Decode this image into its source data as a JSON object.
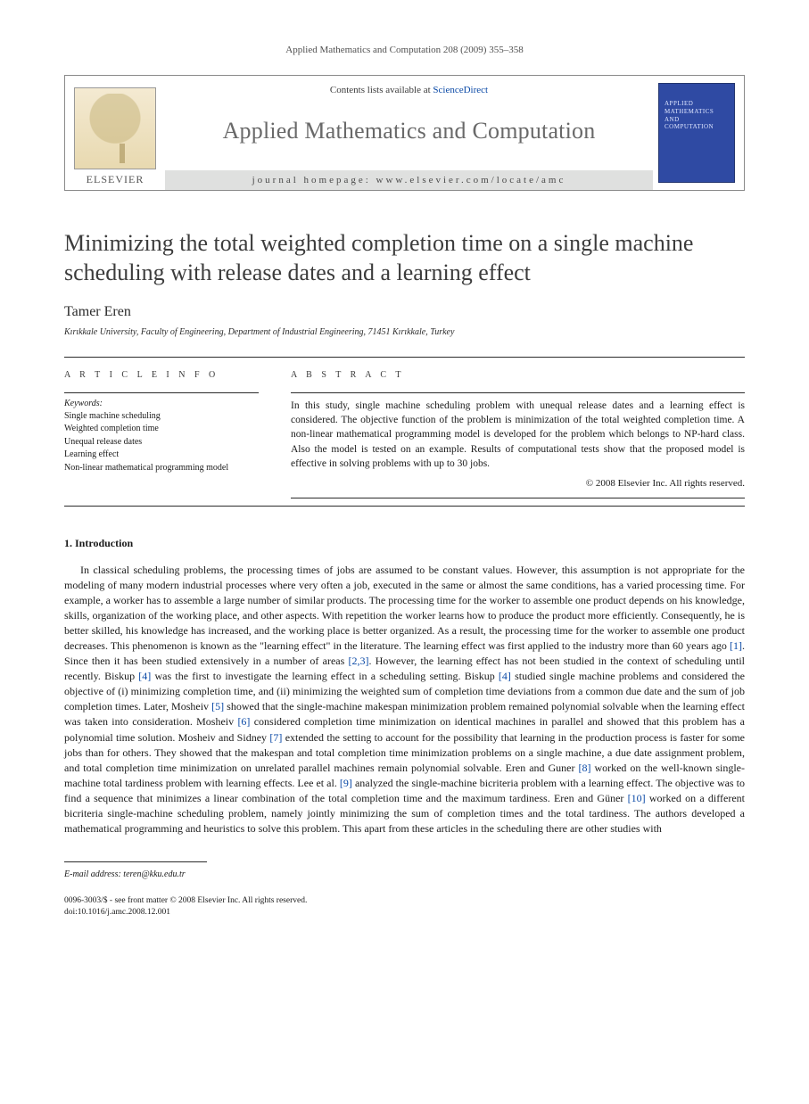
{
  "running_head": "Applied Mathematics and Computation 208 (2009) 355–358",
  "masthead": {
    "publisher_wordmark": "ELSEVIER",
    "contents_prefix": "Contents lists available at ",
    "contents_link_text": "ScienceDirect",
    "journal_name": "Applied Mathematics and Computation",
    "homepage_label": "journal homepage: www.elsevier.com/locate/amc",
    "cover_line1": "APPLIED",
    "cover_line2": "MATHEMATICS",
    "cover_line3": "AND",
    "cover_line4": "COMPUTATION"
  },
  "article": {
    "title": "Minimizing the total weighted completion time on a single machine scheduling with release dates and a learning effect",
    "author": "Tamer Eren",
    "affiliation": "Kırıkkale University, Faculty of Engineering, Department of Industrial Engineering, 71451 Kırıkkale, Turkey"
  },
  "labels": {
    "article_info": "A R T I C L E   I N F O",
    "abstract": "A B S T R A C T",
    "keywords_head": "Keywords:"
  },
  "keywords": [
    "Single machine scheduling",
    "Weighted completion time",
    "Unequal release dates",
    "Learning effect",
    "Non-linear mathematical programming model"
  ],
  "abstract_text": "In this study, single machine scheduling problem with unequal release dates and a learning effect is considered. The objective function of the problem is minimization of the total weighted completion time. A non-linear mathematical programming model is developed for the problem which belongs to NP-hard class. Also the model is tested on an example. Results of computational tests show that the proposed model is effective in solving problems with up to 30 jobs.",
  "copyright": "© 2008 Elsevier Inc. All rights reserved.",
  "section1_head": "1. Introduction",
  "intro_fragments": {
    "f0": "In classical scheduling problems, the processing times of jobs are assumed to be constant values. However, this assumption is not appropriate for the modeling of many modern industrial processes where very often a job, executed in the same or almost the same conditions, has a varied processing time. For example, a worker has to assemble a large number of similar products. The processing time for the worker to assemble one product depends on his knowledge, skills, organization of the working place, and other aspects. With repetition the worker learns how to produce the product more efficiently. Consequently, he is better skilled, his knowledge has increased, and the working place is better organized. As a result, the processing time for the worker to assemble one product decreases. This phenomenon is known as the \"learning effect\" in the literature. The learning effect was first applied to the industry more than 60 years ago ",
    "r1": "[1]",
    "f1": ". Since then it has been studied extensively in a number of areas ",
    "r23": "[2,3]",
    "f2": ". However, the learning effect has not been studied in the context of scheduling until recently. Biskup ",
    "r4a": "[4]",
    "f3": " was the first to investigate the learning effect in a scheduling setting. Biskup ",
    "r4b": "[4]",
    "f4": " studied single machine problems and considered the objective of (i) minimizing completion time, and (ii) minimizing the weighted sum of completion time deviations from a common due date and the sum of job completion times. Later, Mosheiv ",
    "r5": "[5]",
    "f5": " showed that the single-machine makespan minimization problem remained polynomial solvable when the learning effect was taken into consideration. Mosheiv ",
    "r6": "[6]",
    "f6": " considered completion time minimization on identical machines in parallel and showed that this problem has a polynomial time solution. Mosheiv and Sidney ",
    "r7": "[7]",
    "f7": " extended the setting to account for the possibility that learning in the production process is faster for some jobs than for others. They showed that the makespan and total completion time minimization problems on a single machine, a due date assignment problem, and total completion time minimization on unrelated parallel machines remain polynomial solvable. Eren and Guner ",
    "r8": "[8]",
    "f8": " worked on the well-known single-machine total tardiness problem with learning effects. Lee et al. ",
    "r9": "[9]",
    "f9": " analyzed the single-machine bicriteria problem with a learning effect. The objective was to find a sequence that minimizes a linear combination of the total completion time and the maximum tardiness. Eren and Güner ",
    "r10": "[10]",
    "f10": " worked on a different bicriteria single-machine scheduling problem, namely jointly minimizing the sum of completion times and the total tardiness. The authors developed a mathematical programming and heuristics to solve this problem. This apart from these articles in the scheduling there are other studies with"
  },
  "footer": {
    "email_label": "E-mail address: ",
    "email_value": "teren@kku.edu.tr",
    "issn_line": "0096-3003/$ - see front matter © 2008 Elsevier Inc. All rights reserved.",
    "doi_line": "doi:10.1016/j.amc.2008.12.001"
  },
  "colors": {
    "link": "#0a49a6",
    "cover_bg": "#2f4aa3",
    "text": "#1a1a1a",
    "rule": "#2b2b2b",
    "homepage_bg": "#dfe0df",
    "journal_name": "#696969"
  },
  "typography": {
    "title_fontsize_pt": 20,
    "author_fontsize_pt": 12,
    "body_fontsize_pt": 9,
    "abstract_fontsize_pt": 8.5,
    "running_head_fontsize_pt": 8
  }
}
